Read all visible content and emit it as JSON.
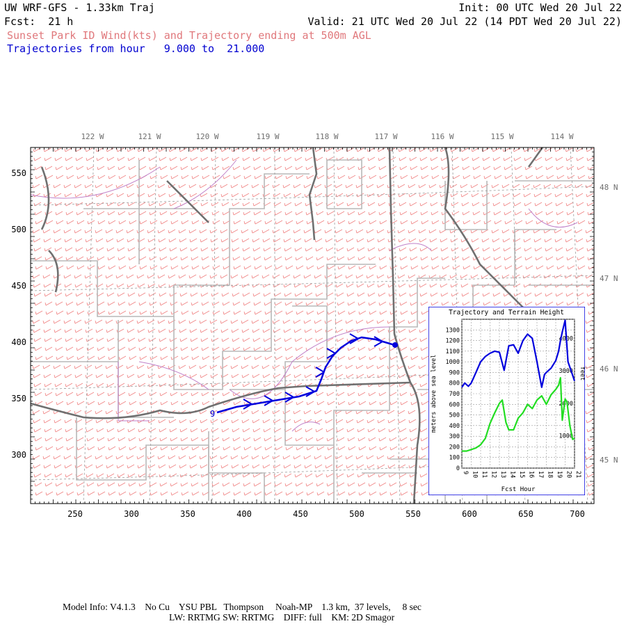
{
  "header": {
    "title_left": "UW WRF-GFS - 1.33km Traj",
    "init": "Init: 00 UTC Wed 20 Jul 22",
    "fcst": "Fcst:  21 h",
    "valid": "Valid: 21 UTC Wed 20 Jul 22 (14 PDT Wed 20 Jul 22)",
    "subtitle": "Sunset Park ID Wind(kts) and Trajectory ending at 500m AGL",
    "traj_hours": "Trajectories from hour   9.000 to  21.000"
  },
  "map": {
    "longitude_labels": [
      "122 W",
      "121 W",
      "120 W",
      "119 W",
      "118 W",
      "117 W",
      "116 W",
      "115 W",
      "114 W"
    ],
    "latitude_labels": [
      "48 N",
      "47 N",
      "46 N",
      "45 N"
    ],
    "x_ticks": [
      "250",
      "300",
      "350",
      "400",
      "450",
      "500",
      "550",
      "600",
      "650",
      "700"
    ],
    "y_ticks": [
      "550",
      "500",
      "450",
      "400",
      "350",
      "300"
    ],
    "trajectory_start_label": "9",
    "colors": {
      "wind_barbs": "#f08080",
      "trajectory": "#0000dd",
      "state_borders": "#6e6e6e",
      "county_borders": "#b8b8b8",
      "water": "#c080c8"
    }
  },
  "inset": {
    "title": "Trajectory and Terrain Height",
    "ylabel_left": "meters above sea level",
    "ylabel_right": "feet",
    "xlabel": "Fcst Hour",
    "y_ticks_m": [
      "0",
      "100",
      "200",
      "300",
      "400",
      "500",
      "600",
      "700",
      "800",
      "900",
      "1000",
      "1100",
      "1200",
      "1300"
    ],
    "y_ticks_ft": [
      "1000",
      "2000",
      "3000",
      "4000"
    ],
    "x_ticks": [
      "9",
      "10",
      "11",
      "12",
      "13",
      "14",
      "15",
      "16",
      "17",
      "18",
      "19",
      "20",
      "21"
    ],
    "colors": {
      "trajectory": "#0000dd",
      "terrain": "#22dd22"
    }
  },
  "chart_data": {
    "type": "line",
    "title": "Trajectory and Terrain Height",
    "xlabel": "Fcst Hour",
    "ylabel": "meters above sea level",
    "ylabel_right": "feet",
    "xlim": [
      9,
      21
    ],
    "ylim": [
      0,
      1400
    ],
    "grid": true,
    "series": [
      {
        "x": [
          9,
          9.3,
          9.7,
          10,
          10.5,
          11,
          11.5,
          12,
          12.5,
          13,
          13.5,
          14,
          14.5,
          15,
          15.5,
          16,
          16.5,
          17,
          17.5,
          17.8,
          18,
          18.5,
          19,
          19.3,
          19.5,
          19.7,
          20,
          20.3,
          20.7,
          21
        ],
        "y": [
          760,
          800,
          770,
          800,
          900,
          1000,
          1050,
          1080,
          1100,
          1090,
          920,
          1150,
          1160,
          1080,
          1200,
          1260,
          1220,
          1000,
          760,
          880,
          900,
          940,
          1010,
          1100,
          1200,
          1280,
          1390,
          1000,
          900,
          820
        ]
      },
      {
        "x": [
          9,
          9.5,
          10,
          10.5,
          11,
          11.5,
          12,
          12.5,
          13,
          13.3,
          13.7,
          14,
          14.5,
          15,
          15.5,
          16,
          16.5,
          17,
          17.5,
          18,
          18.5,
          19,
          19.3,
          19.5,
          19.7,
          20,
          20.2,
          20.5,
          20.8,
          21
        ],
        "y": [
          160,
          160,
          175,
          190,
          220,
          280,
          420,
          520,
          610,
          640,
          430,
          360,
          360,
          470,
          520,
          600,
          560,
          640,
          680,
          600,
          690,
          740,
          780,
          850,
          450,
          650,
          620,
          400,
          270,
          280
        ]
      }
    ]
  },
  "footer": {
    "line1": "Model Info: V4.1.3    No Cu    YSU PBL   Thompson     Noah-MP    1.3 km,  37 levels,     8 sec",
    "line2": "LW: RRTMG SW: RRTMG    DIFF: full    KM: 2D Smagor"
  }
}
